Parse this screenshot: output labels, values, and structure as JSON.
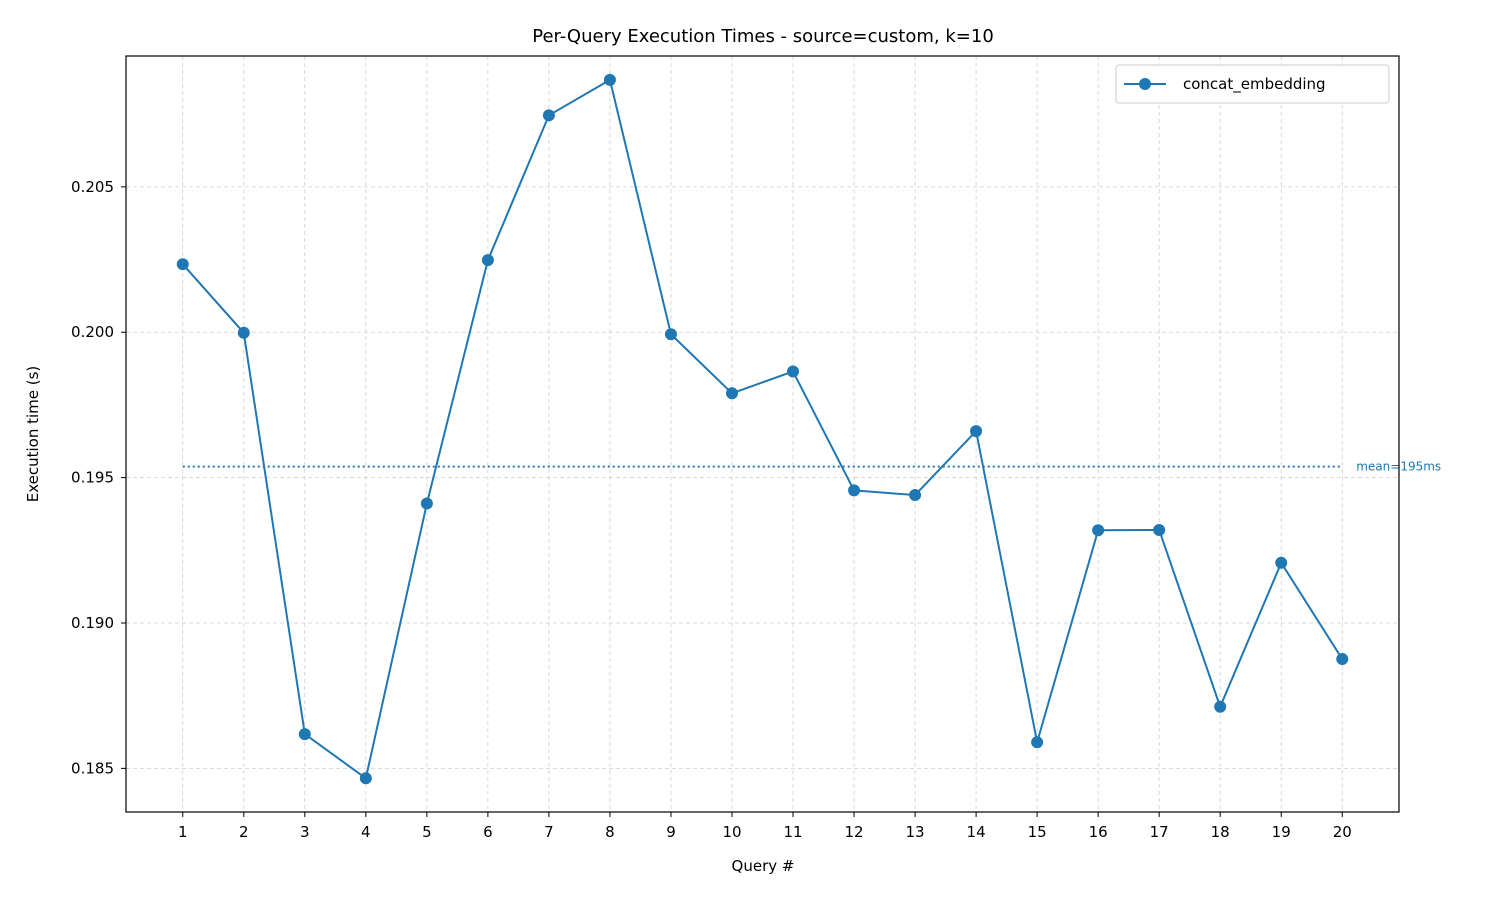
{
  "chart_data": {
    "type": "line",
    "title": "Per-Query Execution Times - source=custom, k=10",
    "xlabel": "Query #",
    "ylabel": "Execution time (s)",
    "x": [
      1,
      2,
      3,
      4,
      5,
      6,
      7,
      8,
      9,
      10,
      11,
      12,
      13,
      14,
      15,
      16,
      17,
      18,
      19,
      20
    ],
    "x_tick_labels": [
      "1",
      "2",
      "3",
      "4",
      "5",
      "6",
      "7",
      "8",
      "9",
      "10",
      "11",
      "12",
      "13",
      "14",
      "15",
      "16",
      "17",
      "18",
      "19",
      "20"
    ],
    "xlim": [
      0.07,
      20.93
    ],
    "ylim": [
      0.1835,
      0.2095
    ],
    "y_ticks": [
      0.185,
      0.19,
      0.195,
      0.2,
      0.205
    ],
    "y_tick_labels": [
      "0.185",
      "0.190",
      "0.195",
      "0.200",
      "0.205"
    ],
    "grid": true,
    "legend_position": "top-right",
    "series": [
      {
        "name": "concat_embedding",
        "color": "#1f77b4",
        "values": [
          0.20234,
          0.19998,
          0.18618,
          0.18466,
          0.19411,
          0.20248,
          0.20746,
          0.20868,
          0.19993,
          0.1979,
          0.19865,
          0.19456,
          0.1944,
          0.1966,
          0.1859,
          0.19319,
          0.1932,
          0.18712,
          0.19207,
          0.18876
        ]
      }
    ],
    "mean_line": {
      "value": 0.19538,
      "label": "mean=195ms",
      "color": "#1f77b4",
      "x_range": [
        1,
        20
      ]
    }
  }
}
